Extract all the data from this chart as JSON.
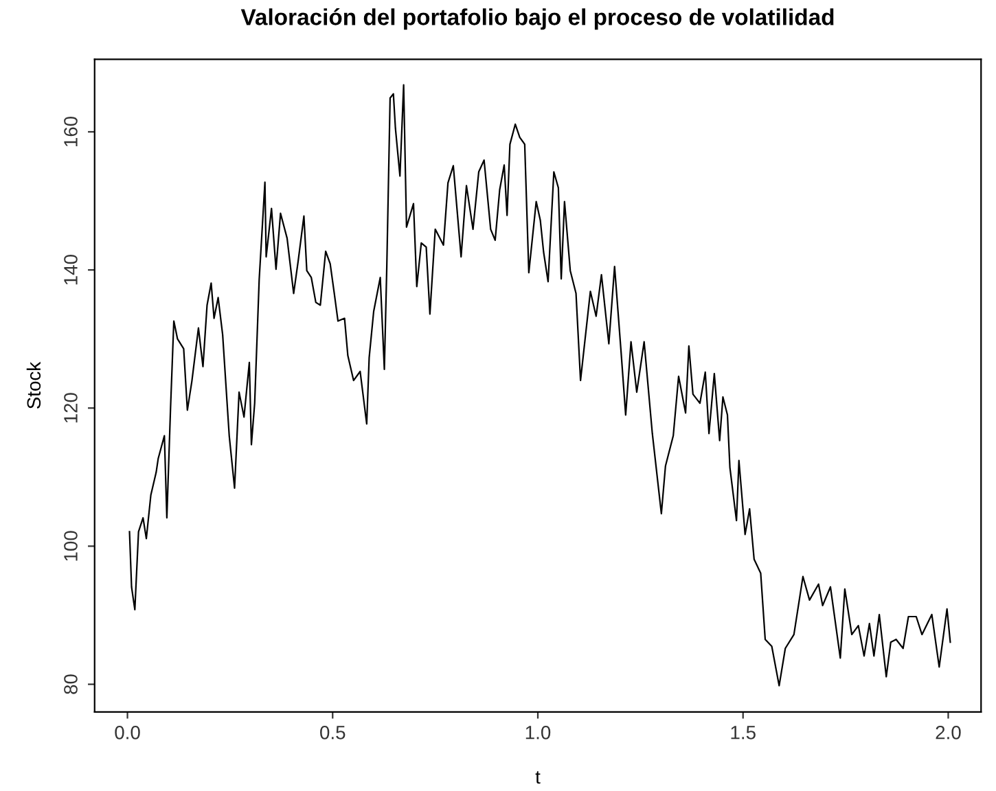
{
  "chart_data": {
    "type": "line",
    "title": "Valoración del portafolio bajo el proceso de volatilidad",
    "xlabel": "t",
    "ylabel": "Stock",
    "xlim": [
      -0.08,
      2.08
    ],
    "ylim": [
      76,
      170.5
    ],
    "xticks": [
      {
        "value": 0,
        "label": "0.0"
      },
      0.5,
      {
        "value": 1,
        "label": "1.0"
      },
      1.5,
      {
        "value": 2,
        "label": "2.0"
      }
    ],
    "yticks": [
      80,
      100,
      120,
      140,
      160
    ],
    "grid": false,
    "legend": false,
    "series": [
      {
        "color": "#000000",
        "x": [
          0.005,
          0.01,
          0.018,
          0.027,
          0.038,
          0.046,
          0.057,
          0.07,
          0.075,
          0.09,
          0.096,
          0.105,
          0.113,
          0.122,
          0.137,
          0.146,
          0.157,
          0.173,
          0.184,
          0.194,
          0.204,
          0.211,
          0.221,
          0.232,
          0.248,
          0.261,
          0.272,
          0.284,
          0.297,
          0.302,
          0.31,
          0.321,
          0.335,
          0.338,
          0.351,
          0.362,
          0.373,
          0.389,
          0.405,
          0.416,
          0.43,
          0.437,
          0.448,
          0.459,
          0.47,
          0.483,
          0.494,
          0.504,
          0.513,
          0.529,
          0.537,
          0.551,
          0.567,
          0.583,
          0.589,
          0.6,
          0.616,
          0.626,
          0.632,
          0.64,
          0.648,
          0.653,
          0.664,
          0.673,
          0.68,
          0.697,
          0.705,
          0.716,
          0.728,
          0.737,
          0.75,
          0.77,
          0.781,
          0.794,
          0.813,
          0.826,
          0.842,
          0.856,
          0.869,
          0.885,
          0.896,
          0.907,
          0.918,
          0.925,
          0.932,
          0.945,
          0.956,
          0.968,
          0.978,
          0.996,
          1.006,
          1.014,
          1.025,
          1.039,
          1.05,
          1.057,
          1.065,
          1.079,
          1.093,
          1.104,
          1.128,
          1.142,
          1.155,
          1.173,
          1.187,
          1.203,
          1.214,
          1.227,
          1.241,
          1.259,
          1.279,
          1.301,
          1.311,
          1.33,
          1.343,
          1.36,
          1.368,
          1.378,
          1.395,
          1.408,
          1.417,
          1.43,
          1.443,
          1.451,
          1.462,
          1.468,
          1.484,
          1.49,
          1.505,
          1.516,
          1.527,
          1.543,
          1.554,
          1.57,
          1.588,
          1.603,
          1.624,
          1.646,
          1.662,
          1.684,
          1.694,
          1.713,
          1.737,
          1.748,
          1.765,
          1.781,
          1.795,
          1.808,
          1.819,
          1.832,
          1.849,
          1.86,
          1.873,
          1.89,
          1.903,
          1.922,
          1.936,
          1.96,
          1.978,
          1.997,
          2.005
        ],
        "values": [
          102.1,
          94.1,
          90.8,
          102.1,
          104.1,
          101.1,
          107.4,
          110.7,
          112.7,
          116.0,
          104.1,
          120.0,
          132.6,
          130.0,
          128.6,
          119.7,
          123.9,
          131.6,
          126.0,
          134.9,
          138.1,
          133.0,
          136.0,
          130.6,
          116.0,
          108.4,
          122.3,
          118.7,
          126.6,
          114.7,
          120.7,
          138.6,
          152.7,
          141.9,
          148.9,
          140.1,
          148.2,
          144.6,
          136.6,
          141.3,
          147.8,
          139.9,
          138.9,
          135.3,
          134.9,
          142.7,
          140.9,
          136.6,
          132.6,
          133.0,
          127.6,
          124.0,
          125.3,
          117.7,
          127.3,
          134.0,
          138.9,
          125.6,
          140.6,
          164.9,
          165.5,
          160.5,
          153.6,
          166.8,
          146.2,
          149.6,
          137.6,
          143.9,
          143.3,
          133.6,
          145.9,
          143.6,
          152.6,
          155.1,
          141.9,
          152.2,
          145.9,
          154.2,
          155.9,
          145.9,
          144.3,
          151.6,
          155.2,
          147.9,
          158.2,
          161.1,
          159.2,
          158.2,
          139.6,
          149.9,
          147.2,
          142.6,
          138.3,
          154.2,
          151.9,
          138.7,
          149.9,
          139.9,
          136.6,
          124.0,
          136.9,
          133.3,
          139.3,
          129.3,
          140.5,
          128.0,
          119.0,
          129.6,
          122.3,
          129.6,
          116.3,
          104.7,
          111.6,
          116.0,
          124.6,
          119.3,
          129.0,
          122.0,
          120.7,
          125.2,
          116.3,
          125.0,
          115.3,
          121.6,
          119.0,
          111.4,
          103.7,
          112.4,
          101.7,
          105.4,
          98.1,
          96.1,
          86.5,
          85.5,
          79.8,
          85.2,
          87.2,
          95.6,
          92.2,
          94.5,
          91.4,
          94.1,
          83.8,
          93.8,
          87.2,
          88.5,
          84.1,
          88.8,
          84.1,
          90.1,
          81.1,
          86.1,
          86.5,
          85.2,
          89.8,
          89.8,
          87.2,
          90.1,
          82.5,
          90.9,
          86.1
        ]
      }
    ]
  }
}
